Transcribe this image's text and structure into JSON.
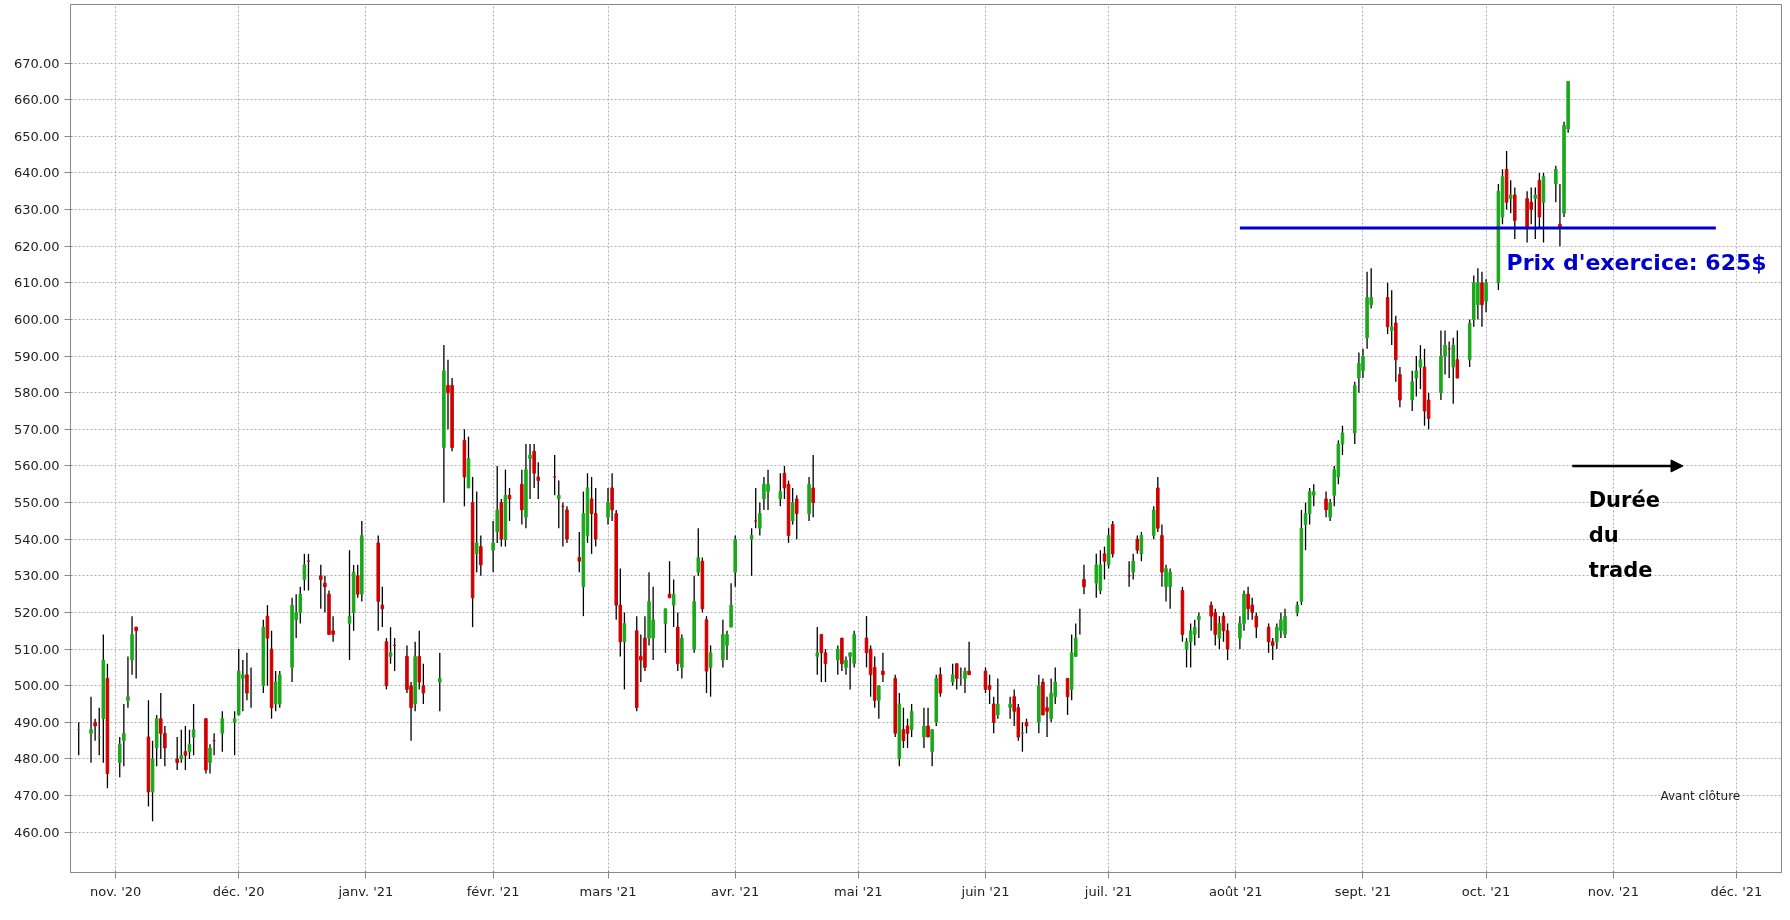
{
  "chart_data": {
    "type": "candlestick",
    "x": [
      "2020-10-23",
      "2020-10-26",
      "2020-10-27",
      "2020-10-28",
      "2020-10-29",
      "2020-10-30",
      "2020-11-02",
      "2020-11-03",
      "2020-11-04",
      "2020-11-05",
      "2020-11-06",
      "2020-11-09",
      "2020-11-10",
      "2020-11-11",
      "2020-11-12",
      "2020-11-13",
      "2020-11-16",
      "2020-11-17",
      "2020-11-18",
      "2020-11-19",
      "2020-11-20",
      "2020-11-23",
      "2020-11-24",
      "2020-11-25",
      "2020-11-27",
      "2020-11-30",
      "2020-12-01",
      "2020-12-02",
      "2020-12-03",
      "2020-12-04",
      "2020-12-07",
      "2020-12-08",
      "2020-12-09",
      "2020-12-10",
      "2020-12-11",
      "2020-12-14",
      "2020-12-15",
      "2020-12-16",
      "2020-12-17",
      "2020-12-18",
      "2020-12-21",
      "2020-12-22",
      "2020-12-23",
      "2020-12-24",
      "2020-12-28",
      "2020-12-29",
      "2020-12-30",
      "2020-12-31",
      "2021-01-04",
      "2021-01-05",
      "2021-01-06",
      "2021-01-07",
      "2021-01-08",
      "2021-01-11",
      "2021-01-12",
      "2021-01-13",
      "2021-01-14",
      "2021-01-15",
      "2021-01-19",
      "2021-01-20",
      "2021-01-21",
      "2021-01-22",
      "2021-01-25",
      "2021-01-26",
      "2021-01-27",
      "2021-01-28",
      "2021-01-29",
      "2021-02-01",
      "2021-02-02",
      "2021-02-03",
      "2021-02-04",
      "2021-02-05",
      "2021-02-08",
      "2021-02-09",
      "2021-02-10",
      "2021-02-11",
      "2021-02-12",
      "2021-02-16",
      "2021-02-17",
      "2021-02-18",
      "2021-02-19",
      "2021-02-22",
      "2021-02-23",
      "2021-02-24",
      "2021-02-25",
      "2021-02-26",
      "2021-03-01",
      "2021-03-02",
      "2021-03-03",
      "2021-03-04",
      "2021-03-05",
      "2021-03-08",
      "2021-03-09",
      "2021-03-10",
      "2021-03-11",
      "2021-03-12",
      "2021-03-15",
      "2021-03-16",
      "2021-03-17",
      "2021-03-18",
      "2021-03-19",
      "2021-03-22",
      "2021-03-23",
      "2021-03-24",
      "2021-03-25",
      "2021-03-26",
      "2021-03-29",
      "2021-03-30",
      "2021-03-31",
      "2021-04-01",
      "2021-04-05",
      "2021-04-06",
      "2021-04-07",
      "2021-04-08",
      "2021-04-09",
      "2021-04-12",
      "2021-04-13",
      "2021-04-14",
      "2021-04-15",
      "2021-04-16",
      "2021-04-19",
      "2021-04-20",
      "2021-04-21",
      "2021-04-22",
      "2021-04-23",
      "2021-04-26",
      "2021-04-27",
      "2021-04-28",
      "2021-04-29",
      "2021-04-30",
      "2021-05-03",
      "2021-05-04",
      "2021-05-05",
      "2021-05-06",
      "2021-05-07",
      "2021-05-10",
      "2021-05-11",
      "2021-05-12",
      "2021-05-13",
      "2021-05-14",
      "2021-05-17",
      "2021-05-18",
      "2021-05-19",
      "2021-05-20",
      "2021-05-21",
      "2021-05-24",
      "2021-05-25",
      "2021-05-26",
      "2021-05-27",
      "2021-05-28",
      "2021-06-01",
      "2021-06-02",
      "2021-06-03",
      "2021-06-04",
      "2021-06-07",
      "2021-06-08",
      "2021-06-09",
      "2021-06-10",
      "2021-06-11",
      "2021-06-14",
      "2021-06-15",
      "2021-06-16",
      "2021-06-17",
      "2021-06-18",
      "2021-06-21",
      "2021-06-22",
      "2021-06-23",
      "2021-06-24",
      "2021-06-25",
      "2021-06-28",
      "2021-06-29",
      "2021-06-30",
      "2021-07-01",
      "2021-07-02",
      "2021-07-06",
      "2021-07-07",
      "2021-07-08",
      "2021-07-09",
      "2021-07-12",
      "2021-07-13",
      "2021-07-14",
      "2021-07-15",
      "2021-07-16",
      "2021-07-19",
      "2021-07-20",
      "2021-07-21",
      "2021-07-22",
      "2021-07-23",
      "2021-07-26",
      "2021-07-27",
      "2021-07-28",
      "2021-07-29",
      "2021-07-30",
      "2021-08-02",
      "2021-08-03",
      "2021-08-04",
      "2021-08-05",
      "2021-08-06",
      "2021-08-09",
      "2021-08-10",
      "2021-08-11",
      "2021-08-12",
      "2021-08-13",
      "2021-08-16",
      "2021-08-17",
      "2021-08-18",
      "2021-08-19",
      "2021-08-20",
      "2021-08-23",
      "2021-08-24",
      "2021-08-25",
      "2021-08-26",
      "2021-08-27",
      "2021-08-30",
      "2021-08-31",
      "2021-09-01",
      "2021-09-02",
      "2021-09-03",
      "2021-09-07",
      "2021-09-08",
      "2021-09-09",
      "2021-09-10",
      "2021-09-13",
      "2021-09-14",
      "2021-09-15",
      "2021-09-16",
      "2021-09-17",
      "2021-09-20",
      "2021-09-21",
      "2021-09-22",
      "2021-09-23",
      "2021-09-24",
      "2021-09-27",
      "2021-09-28",
      "2021-09-29",
      "2021-09-30",
      "2021-10-01",
      "2021-10-04",
      "2021-10-05",
      "2021-10-06",
      "2021-10-07",
      "2021-10-08",
      "2021-10-11",
      "2021-10-12",
      "2021-10-13",
      "2021-10-14",
      "2021-10-15",
      "2021-10-18",
      "2021-10-19",
      "2021-10-20",
      "2021-10-21"
    ],
    "ohlc": [
      [
        488,
        490,
        481,
        488
      ],
      [
        487,
        497,
        479,
        488
      ],
      [
        490,
        491,
        485,
        489
      ],
      [
        486,
        494,
        481,
        486
      ],
      [
        491,
        514,
        479,
        507
      ],
      [
        502,
        506,
        472,
        476
      ],
      [
        479,
        486,
        475,
        484
      ],
      [
        485,
        495,
        478,
        487
      ],
      [
        496,
        508,
        494,
        497
      ],
      [
        507,
        519,
        503,
        514
      ],
      [
        516,
        516,
        502,
        515
      ],
      [
        486,
        496,
        467,
        471
      ],
      [
        471,
        485,
        463,
        480
      ],
      [
        483,
        492,
        478,
        491
      ],
      [
        491,
        498,
        480,
        487
      ],
      [
        487,
        489,
        478,
        483
      ],
      [
        480,
        486,
        477,
        479
      ],
      [
        480,
        488,
        479,
        481
      ],
      [
        482,
        489,
        477,
        481
      ],
      [
        482,
        488,
        480,
        484
      ],
      [
        486,
        495,
        481,
        488
      ],
      [
        491,
        491,
        476,
        477
      ],
      [
        479,
        484,
        476,
        483
      ],
      [
        485,
        487,
        481,
        485
      ],
      [
        487,
        493,
        482,
        491
      ],
      [
        490,
        493,
        481,
        491
      ],
      [
        492,
        510,
        492,
        504
      ],
      [
        502,
        507,
        493,
        503
      ],
      [
        503,
        509,
        496,
        498
      ],
      [
        498,
        505,
        494,
        498
      ],
      [
        500,
        518,
        498,
        516
      ],
      [
        519,
        522,
        500,
        513
      ],
      [
        510,
        515,
        491,
        494
      ],
      [
        495,
        504,
        493,
        501
      ],
      [
        495,
        504,
        494,
        503
      ],
      [
        505,
        524,
        501,
        522
      ],
      [
        518,
        525,
        513,
        520
      ],
      [
        520,
        527,
        517,
        525
      ],
      [
        529,
        536,
        526,
        533
      ],
      [
        534,
        536,
        526,
        534
      ],
      [
        530,
        533,
        521,
        529
      ],
      [
        528,
        530,
        520,
        527
      ],
      [
        525,
        526,
        514,
        514
      ],
      [
        515,
        519,
        512,
        514
      ],
      [
        517,
        537,
        507,
        519
      ],
      [
        520,
        533,
        515,
        531
      ],
      [
        530,
        533,
        524,
        525
      ],
      [
        525,
        545,
        523,
        541
      ],
      [
        539,
        541,
        515,
        523
      ],
      [
        522,
        527,
        516,
        521
      ],
      [
        512,
        513,
        499,
        500
      ],
      [
        508,
        516,
        506,
        509
      ],
      [
        511,
        513,
        504,
        511
      ],
      [
        508,
        511,
        498,
        499
      ],
      [
        500,
        501,
        485,
        494
      ],
      [
        495,
        512,
        493,
        508
      ],
      [
        508,
        515,
        499,
        501
      ],
      [
        500,
        506,
        495,
        498
      ],
      [
        501,
        509,
        493,
        502
      ],
      [
        565,
        593,
        550,
        586
      ],
      [
        582,
        589,
        570,
        580
      ],
      [
        582,
        584,
        564,
        565
      ],
      [
        567,
        570,
        549,
        557
      ],
      [
        554,
        568,
        554,
        562
      ],
      [
        550,
        557,
        516,
        524
      ],
      [
        536,
        553,
        531,
        539
      ],
      [
        538,
        541,
        530,
        533
      ],
      [
        537,
        545,
        531,
        539
      ],
      [
        542,
        560,
        539,
        548
      ],
      [
        550,
        551,
        538,
        540
      ],
      [
        540,
        559,
        538,
        552
      ],
      [
        552,
        554,
        545,
        551
      ],
      [
        555,
        559,
        544,
        548
      ],
      [
        546,
        566,
        543,
        559
      ],
      [
        562,
        566,
        551,
        563
      ],
      [
        564,
        566,
        554,
        558
      ],
      [
        557,
        561,
        551,
        556
      ],
      [
        557,
        563,
        552,
        557
      ],
      [
        551,
        556,
        543,
        552
      ],
      [
        549,
        550,
        538,
        549
      ],
      [
        548,
        549,
        539,
        540
      ],
      [
        535,
        542,
        531,
        534
      ],
      [
        527,
        553,
        519,
        547
      ],
      [
        541,
        558,
        539,
        554
      ],
      [
        551,
        557,
        536,
        547
      ],
      [
        547,
        554,
        538,
        540
      ],
      [
        546,
        554,
        544,
        550
      ],
      [
        554,
        558,
        545,
        548
      ],
      [
        547,
        548,
        518,
        522
      ],
      [
        522,
        532,
        508,
        512
      ],
      [
        512,
        520,
        499,
        517
      ],
      [
        515,
        519,
        493,
        494
      ],
      [
        508,
        514,
        501,
        507
      ],
      [
        513,
        519,
        504,
        505
      ],
      [
        513,
        531,
        511,
        523
      ],
      [
        513,
        527,
        507,
        518
      ],
      [
        517,
        521,
        509,
        521
      ],
      [
        525,
        534,
        524,
        524
      ],
      [
        522,
        529,
        516,
        525
      ],
      [
        516,
        520,
        504,
        506
      ],
      [
        505,
        514,
        502,
        513
      ],
      [
        510,
        530,
        509,
        523
      ],
      [
        531,
        543,
        530,
        535
      ],
      [
        534,
        535,
        520,
        521
      ],
      [
        518,
        519,
        498,
        504
      ],
      [
        505,
        511,
        497,
        509
      ],
      [
        507,
        518,
        505,
        514
      ],
      [
        511,
        515,
        507,
        514
      ],
      [
        516,
        528,
        516,
        522
      ],
      [
        531,
        541,
        527,
        540
      ],
      [
        540,
        543,
        530,
        541
      ],
      [
        545,
        554,
        543,
        545
      ],
      [
        543,
        550,
        541,
        547
      ],
      [
        551,
        557,
        548,
        555
      ],
      [
        553,
        559,
        548,
        555
      ],
      [
        551,
        558,
        549,
        553
      ],
      [
        558,
        560,
        551,
        554
      ],
      [
        555,
        556,
        539,
        541
      ],
      [
        545,
        554,
        544,
        550
      ],
      [
        551,
        552,
        540,
        547
      ],
      [
        547,
        557,
        545,
        555
      ],
      [
        554,
        563,
        546,
        550
      ],
      [
        508,
        516,
        503,
        509
      ],
      [
        514,
        514,
        501,
        509
      ],
      [
        509,
        510,
        501,
        506
      ],
      [
        507,
        511,
        503,
        510
      ],
      [
        513,
        513,
        504,
        506
      ],
      [
        505,
        508,
        503,
        507
      ],
      [
        508,
        509,
        499,
        509
      ],
      [
        506,
        515,
        505,
        514
      ],
      [
        513,
        519,
        505,
        509
      ],
      [
        510,
        511,
        497,
        503
      ],
      [
        505,
        508,
        494,
        496
      ],
      [
        496,
        500,
        491,
        500
      ],
      [
        504,
        509,
        501,
        503
      ],
      [
        502,
        503,
        486,
        487
      ],
      [
        480,
        498,
        478,
        495
      ],
      [
        488,
        494,
        483,
        485
      ],
      [
        489,
        491,
        483,
        487
      ],
      [
        488,
        495,
        486,
        493
      ],
      [
        486,
        494,
        483,
        489
      ],
      [
        489,
        494,
        486,
        486
      ],
      [
        482,
        488,
        478,
        488
      ],
      [
        490,
        503,
        489,
        502
      ],
      [
        503,
        505,
        497,
        498
      ],
      [
        501,
        506,
        500,
        503
      ],
      [
        506,
        506,
        499,
        502
      ],
      [
        502,
        505,
        500,
        502
      ],
      [
        502,
        505,
        498,
        504
      ],
      [
        504,
        512,
        503,
        503
      ],
      [
        504,
        505,
        498,
        499
      ],
      [
        500,
        503,
        495,
        499
      ],
      [
        495,
        497,
        487,
        490
      ],
      [
        492,
        502,
        491,
        495
      ],
      [
        494,
        497,
        491,
        495
      ],
      [
        497,
        499,
        489,
        493
      ],
      [
        494,
        495,
        485,
        486
      ],
      [
        487,
        490,
        482,
        487
      ],
      [
        490,
        491,
        487,
        489
      ],
      [
        490,
        503,
        487,
        500
      ],
      [
        501,
        502,
        492,
        492
      ],
      [
        494,
        497,
        486,
        493
      ],
      [
        491,
        502,
        490,
        498
      ],
      [
        497,
        505,
        495,
        501
      ],
      [
        502,
        502,
        492,
        497
      ],
      [
        499,
        514,
        496,
        509
      ],
      [
        508,
        517,
        508,
        513
      ],
      [
        518,
        521,
        514,
        518
      ],
      [
        529,
        533,
        525,
        527
      ],
      [
        528,
        536,
        524,
        533
      ],
      [
        526,
        537,
        525,
        533
      ],
      [
        536,
        538,
        529,
        534
      ],
      [
        533,
        543,
        532,
        541
      ],
      [
        544,
        545,
        535,
        536
      ],
      [
        530,
        534,
        527,
        530
      ],
      [
        531,
        536,
        529,
        534
      ],
      [
        540,
        541,
        536,
        537
      ],
      [
        536,
        542,
        534,
        541
      ],
      [
        541,
        549,
        540,
        548
      ],
      [
        554,
        557,
        542,
        543
      ],
      [
        541,
        544,
        527,
        531
      ],
      [
        527,
        533,
        523,
        532
      ],
      [
        527,
        532,
        521,
        531
      ],
      [
        526,
        527,
        512,
        514
      ],
      [
        510,
        513,
        505,
        512
      ],
      [
        512,
        517,
        505,
        515
      ],
      [
        514,
        518,
        511,
        516
      ],
      [
        518,
        520,
        513,
        519
      ],
      [
        522,
        523,
        515,
        519
      ],
      [
        520,
        521,
        511,
        514
      ],
      [
        513,
        519,
        510,
        517
      ],
      [
        519,
        520,
        512,
        515
      ],
      [
        515,
        517,
        507,
        510
      ],
      [
        513,
        519,
        510,
        517
      ],
      [
        517,
        526,
        515,
        525
      ],
      [
        525,
        527,
        518,
        521
      ],
      [
        522,
        524,
        518,
        520
      ],
      [
        519,
        520,
        513,
        516
      ],
      [
        516,
        517,
        509,
        512
      ],
      [
        512,
        513,
        507,
        511
      ],
      [
        512,
        517,
        510,
        516
      ],
      [
        515,
        520,
        513,
        518
      ],
      [
        514,
        521,
        513,
        519
      ],
      [
        520,
        523,
        519,
        522
      ],
      [
        523,
        548,
        522,
        543
      ],
      [
        544,
        550,
        537,
        547
      ],
      [
        547,
        554,
        544,
        553
      ],
      [
        552,
        555,
        549,
        553
      ],
      [
        551,
        553,
        546,
        548
      ],
      [
        546,
        551,
        545,
        550
      ],
      [
        552,
        560,
        549,
        559
      ],
      [
        557,
        567,
        555,
        566
      ],
      [
        566,
        571,
        563,
        569
      ],
      [
        569,
        583,
        566,
        582
      ],
      [
        584,
        591,
        580,
        588
      ],
      [
        586,
        592,
        584,
        590
      ],
      [
        595,
        613,
        592,
        606
      ],
      [
        604,
        614,
        603,
        606
      ],
      [
        606,
        610,
        596,
        598
      ],
      [
        597,
        608,
        593,
        598
      ],
      [
        599,
        601,
        583,
        589
      ],
      [
        585,
        587,
        576,
        578
      ],
      [
        578,
        586,
        575,
        583
      ],
      [
        584,
        590,
        579,
        586
      ],
      [
        587,
        593,
        581,
        589
      ],
      [
        587,
        592,
        571,
        575
      ],
      [
        578,
        580,
        570,
        573
      ],
      [
        580,
        597,
        578,
        590
      ],
      [
        590,
        597,
        585,
        593
      ],
      [
        592,
        594,
        584,
        592
      ],
      [
        587,
        595,
        577,
        593
      ],
      [
        589,
        597,
        584,
        584
      ],
      [
        589,
        600,
        587,
        599
      ],
      [
        600,
        612,
        598,
        610
      ],
      [
        604,
        614,
        600,
        610
      ],
      [
        610,
        613,
        598,
        604
      ],
      [
        605,
        611,
        602,
        610
      ],
      [
        610,
        637,
        608,
        635
      ],
      [
        628,
        641,
        626,
        639
      ],
      [
        641,
        646,
        630,
        632
      ],
      [
        633,
        638,
        629,
        634
      ],
      [
        634,
        636,
        622,
        627
      ],
      [
        633,
        635,
        621,
        625
      ],
      [
        632,
        636,
        626,
        630
      ],
      [
        633,
        636,
        622,
        634
      ],
      [
        638,
        640,
        625,
        628
      ],
      [
        632,
        640,
        621,
        639
      ],
      [
        637,
        642,
        632,
        641
      ],
      [
        626,
        637,
        620,
        625
      ],
      [
        629,
        654,
        628,
        653
      ],
      [
        652,
        665,
        651,
        665
      ]
    ],
    "colors": [
      "#1aa81a",
      "#1aa81a",
      "#d00000",
      "#1aa81a",
      "#1aa81a",
      "#d00000",
      "#1aa81a",
      "#1aa81a",
      "#1aa81a",
      "#1aa81a",
      "#d00000",
      "#d00000",
      "#1aa81a",
      "#1aa81a",
      "#d00000",
      "#d00000",
      "#d00000",
      "#1aa81a",
      "#d00000",
      "#1aa81a",
      "#1aa81a",
      "#d00000",
      "#1aa81a",
      "#d00000",
      "#1aa81a",
      "#1aa81a",
      "#1aa81a",
      "#1aa81a",
      "#d00000",
      "#1aa81a",
      "#1aa81a",
      "#d00000",
      "#d00000",
      "#1aa81a",
      "#1aa81a",
      "#1aa81a",
      "#1aa81a",
      "#1aa81a",
      "#1aa81a",
      "#d00000",
      "#d00000",
      "#d00000",
      "#d00000",
      "#d00000",
      "#1aa81a",
      "#1aa81a",
      "#d00000",
      "#1aa81a",
      "#d00000",
      "#d00000",
      "#d00000",
      "#1aa81a",
      "#d00000",
      "#d00000",
      "#d00000",
      "#1aa81a",
      "#d00000",
      "#d00000",
      "#1aa81a",
      "#1aa81a",
      "#d00000",
      "#d00000",
      "#d00000",
      "#1aa81a",
      "#d00000",
      "#1aa81a",
      "#d00000",
      "#1aa81a",
      "#1aa81a",
      "#d00000",
      "#1aa81a",
      "#d00000",
      "#d00000",
      "#1aa81a",
      "#1aa81a",
      "#d00000",
      "#d00000",
      "#d00000",
      "#1aa81a",
      "#d00000",
      "#d00000",
      "#d00000",
      "#1aa81a",
      "#1aa81a",
      "#d00000",
      "#d00000",
      "#1aa81a",
      "#d00000",
      "#d00000",
      "#d00000",
      "#1aa81a",
      "#d00000",
      "#d00000",
      "#d00000",
      "#1aa81a",
      "#1aa81a",
      "#1aa81a",
      "#d00000",
      "#1aa81a",
      "#d00000",
      "#1aa81a",
      "#1aa81a",
      "#1aa81a",
      "#d00000",
      "#d00000",
      "#1aa81a",
      "#1aa81a",
      "#1aa81a",
      "#1aa81a",
      "#1aa81a",
      "#1aa81a",
      "#d00000",
      "#1aa81a",
      "#1aa81a",
      "#1aa81a",
      "#1aa81a",
      "#d00000",
      "#d00000",
      "#1aa81a",
      "#d00000",
      "#1aa81a",
      "#d00000",
      "#1aa81a",
      "#d00000",
      "#d00000",
      "#1aa81a",
      "#d00000",
      "#1aa81a",
      "#1aa81a",
      "#1aa81a",
      "#d00000",
      "#d00000",
      "#d00000",
      "#1aa81a",
      "#d00000",
      "#d00000",
      "#1aa81a",
      "#d00000",
      "#d00000",
      "#1aa81a",
      "#1aa81a",
      "#d00000",
      "#1aa81a",
      "#1aa81a",
      "#d00000",
      "#1aa81a",
      "#d00000",
      "#1aa81a",
      "#1aa81a",
      "#d00000",
      "#d00000",
      "#d00000",
      "#d00000",
      "#1aa81a",
      "#1aa81a",
      "#d00000",
      "#d00000",
      "#1aa81a",
      "#d00000",
      "#1aa81a",
      "#d00000",
      "#d00000",
      "#1aa81a",
      "#1aa81a",
      "#d00000",
      "#1aa81a",
      "#1aa81a",
      "#1aa81a",
      "#d00000",
      "#1aa81a",
      "#1aa81a",
      "#d00000",
      "#1aa81a",
      "#d00000",
      "#d00000",
      "#1aa81a",
      "#d00000",
      "#1aa81a",
      "#1aa81a",
      "#d00000",
      "#d00000",
      "#1aa81a",
      "#1aa81a",
      "#d00000",
      "#1aa81a",
      "#1aa81a",
      "#1aa81a",
      "#1aa81a",
      "#d00000",
      "#d00000",
      "#1aa81a",
      "#d00000",
      "#d00000",
      "#1aa81a",
      "#1aa81a",
      "#d00000",
      "#d00000",
      "#d00000",
      "#d00000",
      "#d00000",
      "#1aa81a",
      "#1aa81a",
      "#1aa81a",
      "#1aa81a",
      "#1aa81a",
      "#1aa81a",
      "#1aa81a",
      "#1aa81a",
      "#d00000",
      "#1aa81a",
      "#1aa81a",
      "#1aa81a",
      "#1aa81a",
      "#1aa81a",
      "#1aa81a",
      "#1aa81a",
      "#1aa81a",
      "#1aa81a",
      "#d00000",
      "#1aa81a",
      "#d00000",
      "#d00000",
      "#1aa81a",
      "#1aa81a",
      "#1aa81a",
      "#d00000",
      "#d00000",
      "#1aa81a",
      "#1aa81a",
      "#d00000",
      "#1aa81a",
      "#d00000",
      "#1aa81a",
      "#1aa81a",
      "#1aa81a",
      "#d00000",
      "#1aa81a",
      "#1aa81a",
      "#1aa81a",
      "#d00000",
      "#1aa81a",
      "#d00000",
      "#d00000",
      "#d00000",
      "#1aa81a",
      "#d00000",
      "#1aa81a",
      "#1aa81a",
      "#d00000",
      "#1aa81a",
      "#1aa81a"
    ],
    "series": [
      {
        "type": "line",
        "x": [
          "2021-08-02",
          "2021-11-26"
        ],
        "values": [
          625,
          625
        ],
        "color": "#0000cc"
      },
      {
        "type": "line",
        "marker": "triangle",
        "x": [
          "2021-10-22",
          "2021-11-18"
        ],
        "values": [
          560,
          560
        ],
        "color": "#000000"
      }
    ],
    "annotations": [
      {
        "text": "Prix d'exercice: 625$",
        "x": "2021-10-06",
        "y": 625
      },
      {
        "text": "Durée du trade",
        "x": "2021-10-26",
        "y": 560
      },
      "Avant clôture"
    ],
    "xlim": [
      "2020-10-21",
      "2021-12-12"
    ],
    "xticks": [
      {
        "value": "2020-11-01",
        "label": "nov. '20"
      },
      {
        "value": "2020-12-01",
        "label": "déc. '20"
      },
      {
        "value": "2021-01-01",
        "label": "janv. '21"
      },
      {
        "value": "2021-02-01",
        "label": "févr. '21"
      },
      {
        "value": "2021-03-01",
        "label": "mars '21"
      },
      {
        "value": "2021-04-01",
        "label": "avr. '21"
      },
      {
        "value": "2021-05-01",
        "label": "mai '21"
      },
      {
        "value": "2021-06-01",
        "label": "juin '21"
      },
      {
        "value": "2021-07-01",
        "label": "juil. '21"
      },
      {
        "value": "2021-08-01",
        "label": "août '21"
      },
      {
        "value": "2021-09-01",
        "label": "sept. '21"
      },
      {
        "value": "2021-10-01",
        "label": "oct. '21"
      },
      {
        "value": "2021-11-01",
        "label": "nov. '21"
      },
      {
        "value": "2021-12-01",
        "label": "déc. '21"
      }
    ],
    "ylim": [
      449,
      686
    ],
    "yticks": [
      {
        "value": 460,
        "label": "460.00"
      },
      {
        "value": 470,
        "label": "470.00"
      },
      {
        "value": 480,
        "label": "480.00"
      },
      {
        "value": 490,
        "label": "490.00"
      },
      {
        "value": 500,
        "label": "500.00"
      },
      {
        "value": 510,
        "label": "510.00"
      },
      {
        "value": 520,
        "label": "520.00"
      },
      {
        "value": 530,
        "label": "530.00"
      },
      {
        "value": 540,
        "label": "540.00"
      },
      {
        "value": 550,
        "label": "550.00"
      },
      {
        "value": 560,
        "label": "560.00"
      },
      {
        "value": 570,
        "label": "570.00"
      },
      {
        "value": 580,
        "label": "580.00"
      },
      {
        "value": 590,
        "label": "590.00"
      },
      {
        "value": 600,
        "label": "600.00"
      },
      {
        "value": 610,
        "label": "610.00"
      },
      {
        "value": 620,
        "label": "620.00"
      },
      {
        "value": 630,
        "label": "630.00"
      },
      {
        "value": 640,
        "label": "640.00"
      },
      {
        "value": 650,
        "label": "650.00"
      },
      {
        "value": 660,
        "label": "660.00"
      },
      {
        "value": 670,
        "label": "670.00"
      }
    ],
    "grid": true
  }
}
